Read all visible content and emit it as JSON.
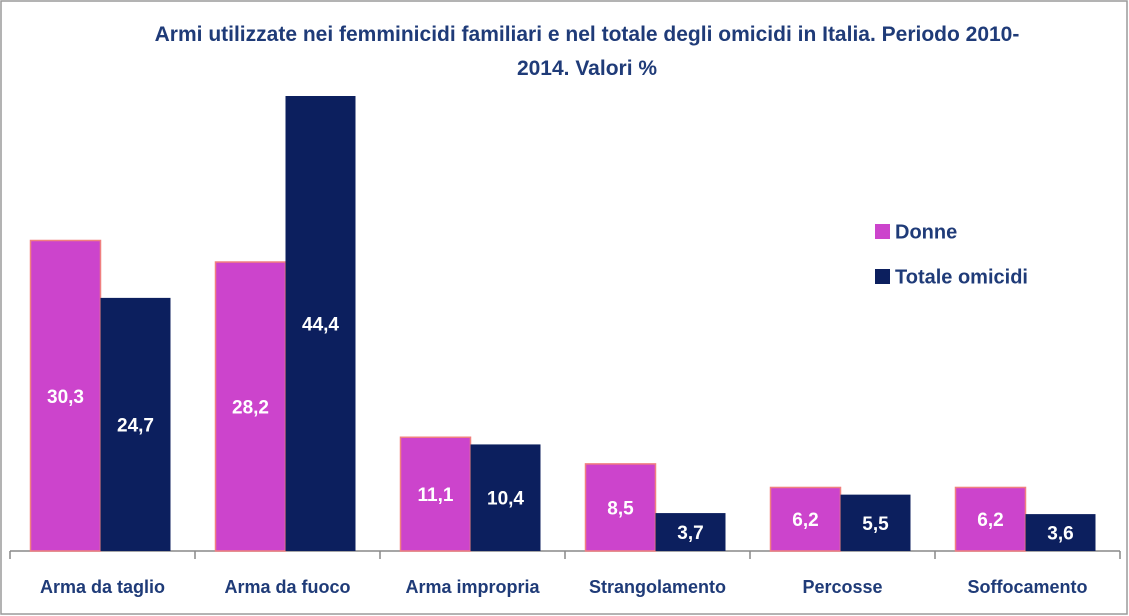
{
  "chart_data": {
    "type": "bar",
    "title": "Armi utilizzate nei femminicidi familiari e nel totale degli omicidi in Italia. Periodo 2010-2014. Valori %",
    "categories": [
      "Arma da taglio",
      "Arma da fuoco",
      "Arma impropria",
      "Strangolamento",
      "Percosse",
      "Soffocamento"
    ],
    "series": [
      {
        "name": "Donne",
        "color": "#cc44cc",
        "values": [
          30.3,
          28.2,
          11.1,
          8.5,
          6.2,
          6.2
        ],
        "value_labels": [
          "30,3",
          "28,2",
          "11,1",
          "8,5",
          "6,2",
          "6,2"
        ]
      },
      {
        "name": "Totale omicidi",
        "color": "#0c1f5e",
        "values": [
          24.7,
          44.4,
          10.4,
          3.7,
          5.5,
          3.6
        ],
        "value_labels": [
          "24,7",
          "44,4",
          "10,4",
          "3,7",
          "5,5",
          "3,6"
        ]
      }
    ],
    "legend": "right"
  }
}
